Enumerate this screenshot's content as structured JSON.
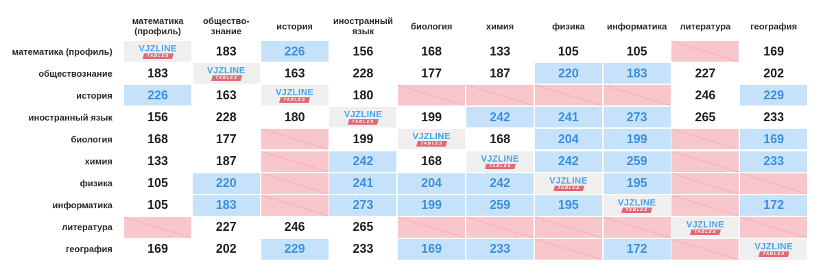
{
  "columns": [
    "математика\n(профиль)",
    "общество-\nзнание",
    "история",
    "иностранный\nязык",
    "биология",
    "химия",
    "физика",
    "информатика",
    "литература",
    "география"
  ],
  "rows": [
    "математика (профиль)",
    "обществознание",
    "история",
    "иностранный язык",
    "биология",
    "химия",
    "физика",
    "информатика",
    "литература",
    "география"
  ],
  "logo": {
    "main": "VJZLINE",
    "tag": "TABLES"
  },
  "colors": {
    "highlight_bg": "#c6e2fb",
    "highlight_text": "#3b8fdc",
    "unavailable_bg": "#f8c7cc",
    "self_bg": "#efefef"
  },
  "matrix": [
    [
      {
        "t": "self"
      },
      {
        "v": "183"
      },
      {
        "v": "226",
        "t": "blue"
      },
      {
        "v": "156"
      },
      {
        "v": "168"
      },
      {
        "v": "133"
      },
      {
        "v": "105"
      },
      {
        "v": "105"
      },
      {
        "t": "none"
      },
      {
        "v": "169"
      }
    ],
    [
      {
        "v": "183"
      },
      {
        "t": "self"
      },
      {
        "v": "163"
      },
      {
        "v": "228"
      },
      {
        "v": "177"
      },
      {
        "v": "187"
      },
      {
        "v": "220",
        "t": "blue"
      },
      {
        "v": "183",
        "t": "blue"
      },
      {
        "v": "227"
      },
      {
        "v": "202"
      }
    ],
    [
      {
        "v": "226",
        "t": "blue"
      },
      {
        "v": "163"
      },
      {
        "t": "self"
      },
      {
        "v": "180"
      },
      {
        "t": "none"
      },
      {
        "t": "none"
      },
      {
        "t": "none"
      },
      {
        "t": "none"
      },
      {
        "v": "246"
      },
      {
        "v": "229",
        "t": "blue"
      }
    ],
    [
      {
        "v": "156"
      },
      {
        "v": "228"
      },
      {
        "v": "180"
      },
      {
        "t": "self"
      },
      {
        "v": "199"
      },
      {
        "v": "242",
        "t": "blue"
      },
      {
        "v": "241",
        "t": "blue"
      },
      {
        "v": "273",
        "t": "blue"
      },
      {
        "v": "265"
      },
      {
        "v": "233"
      }
    ],
    [
      {
        "v": "168"
      },
      {
        "v": "177"
      },
      {
        "t": "none"
      },
      {
        "v": "199"
      },
      {
        "t": "self"
      },
      {
        "v": "168"
      },
      {
        "v": "204",
        "t": "blue"
      },
      {
        "v": "199",
        "t": "blue"
      },
      {
        "t": "none"
      },
      {
        "v": "169",
        "t": "blue"
      }
    ],
    [
      {
        "v": "133"
      },
      {
        "v": "187"
      },
      {
        "t": "none"
      },
      {
        "v": "242",
        "t": "blue"
      },
      {
        "v": "168"
      },
      {
        "t": "self"
      },
      {
        "v": "242",
        "t": "blue"
      },
      {
        "v": "259",
        "t": "blue"
      },
      {
        "t": "none"
      },
      {
        "v": "233",
        "t": "blue"
      }
    ],
    [
      {
        "v": "105"
      },
      {
        "v": "220",
        "t": "blue"
      },
      {
        "t": "none"
      },
      {
        "v": "241",
        "t": "blue"
      },
      {
        "v": "204",
        "t": "blue"
      },
      {
        "v": "242",
        "t": "blue"
      },
      {
        "t": "self"
      },
      {
        "v": "195",
        "t": "blue"
      },
      {
        "t": "none"
      },
      {
        "t": "none"
      }
    ],
    [
      {
        "v": "105"
      },
      {
        "v": "183",
        "t": "blue"
      },
      {
        "t": "none"
      },
      {
        "v": "273",
        "t": "blue"
      },
      {
        "v": "199",
        "t": "blue"
      },
      {
        "v": "259",
        "t": "blue"
      },
      {
        "v": "195",
        "t": "blue"
      },
      {
        "t": "self"
      },
      {
        "t": "none"
      },
      {
        "v": "172",
        "t": "blue"
      }
    ],
    [
      {
        "t": "none"
      },
      {
        "v": "227"
      },
      {
        "v": "246"
      },
      {
        "v": "265"
      },
      {
        "t": "none"
      },
      {
        "t": "none"
      },
      {
        "t": "none"
      },
      {
        "t": "none"
      },
      {
        "t": "self"
      },
      {
        "t": "none"
      }
    ],
    [
      {
        "v": "169"
      },
      {
        "v": "202"
      },
      {
        "v": "229",
        "t": "blue"
      },
      {
        "v": "233"
      },
      {
        "v": "169",
        "t": "blue"
      },
      {
        "v": "233",
        "t": "blue"
      },
      {
        "t": "none"
      },
      {
        "v": "172",
        "t": "blue"
      },
      {
        "t": "none"
      },
      {
        "t": "self"
      }
    ]
  ]
}
